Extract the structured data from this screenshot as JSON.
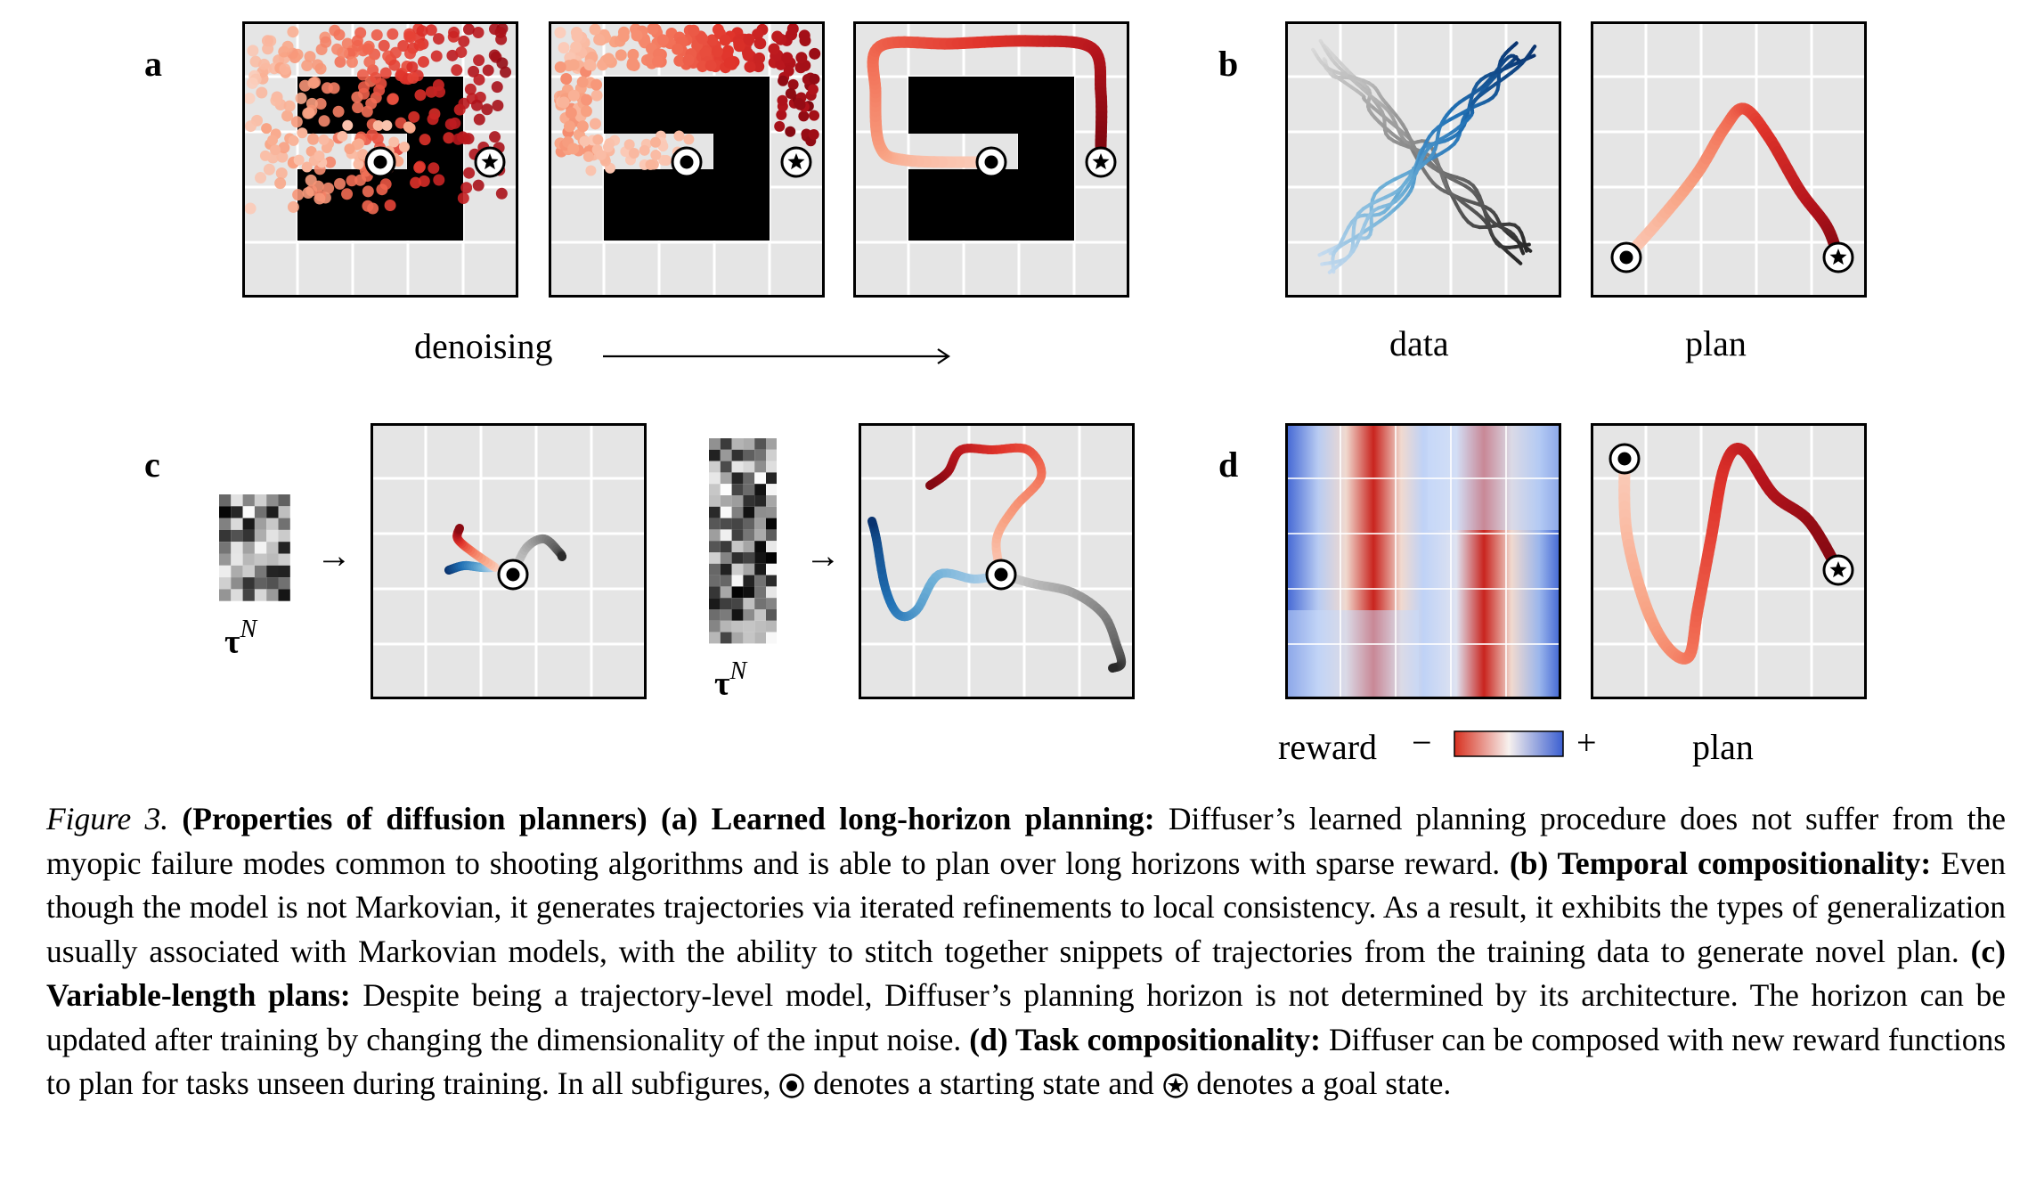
{
  "panels": {
    "a": {
      "letter": "a",
      "label": "denoising"
    },
    "b": {
      "letter": "b",
      "label_left": "data",
      "label_right": "plan"
    },
    "c": {
      "letter": "c",
      "tau_symbol": "τ",
      "tau_superscript": "N"
    },
    "d": {
      "letter": "d",
      "reward_label": "reward",
      "minus": "−",
      "plus": "+",
      "plan_label": "plan"
    }
  },
  "caption": {
    "figure_label": "Figure 3.",
    "title": "(Properties of diffusion planners)",
    "a_head": "(a) Learned long-horizon planning:",
    "a_text": "Diffuser’s learned planning procedure does not suffer from the myopic failure modes common to shooting algorithms and is able to plan over long horizons with sparse reward.",
    "b_head": "(b) Temporal compositionality:",
    "b_text": "Even though the model is not Markovian, it generates trajectories via iterated refinements to local consistency. As a result, it exhibits the types of generalization usually associated with Markovian models, with the ability to stitch together snippets of trajectories from the training data to generate novel plan.",
    "c_head": "(c) Variable-length plans:",
    "c_text": "Despite being a trajectory-level model, Diffuser’s planning horizon is not determined by its architecture. The horizon can be updated after training by changing the dimensionality of the input noise.",
    "d_head": "(d) Task compositionality:",
    "d_text": "Diffuser can be composed with new reward functions to plan for tasks unseen during training. In all subfigures,",
    "start_text": "denotes a starting state and",
    "goal_text": "denotes a goal state."
  },
  "colors": {
    "grid_bg": "#e5e5e5",
    "reds": [
      "#fbd0bf",
      "#f8a384",
      "#f26f56",
      "#e0342b",
      "#b4141c",
      "#7f0710"
    ],
    "blues": [
      "#c6dbef",
      "#6baed6",
      "#2171b5",
      "#08306b"
    ],
    "grays": [
      "#d9d9d9",
      "#a0a0a0",
      "#636363",
      "#252525"
    ]
  }
}
